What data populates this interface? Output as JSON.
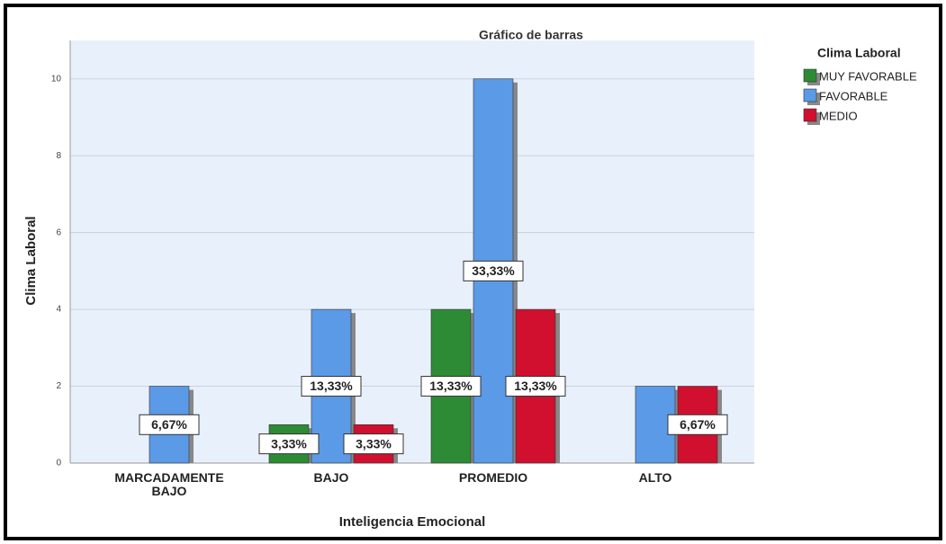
{
  "chart_data": {
    "type": "bar",
    "title": "Gráfico de barras",
    "x_label": "Inteligencia Emocional",
    "y_label": "Clima Laboral",
    "legend_title": "Clima Laboral",
    "legend": "right",
    "categories": [
      "MARCADAMENTE BAJO",
      "BAJO",
      "PROMEDIO",
      "ALTO"
    ],
    "series": [
      {
        "name": "MUY FAVORABLE",
        "color": "#2e8b35",
        "values": [
          null,
          1,
          4,
          null
        ],
        "percent_labels": [
          null,
          "3,33%",
          "13,33%",
          null
        ]
      },
      {
        "name": "FAVORABLE",
        "color": "#5b9ae6",
        "values": [
          2,
          4,
          10,
          2
        ],
        "percent_labels": [
          "6,67%",
          "13,33%",
          "33,33%",
          null
        ]
      },
      {
        "name": "MEDIO",
        "color": "#d0102e",
        "values": [
          null,
          1,
          4,
          2
        ],
        "percent_labels": [
          null,
          "3,33%",
          "13,33%",
          "6,67%"
        ]
      }
    ],
    "ylim": [
      0,
      11
    ],
    "yticks": [
      0,
      2,
      4,
      6,
      8,
      10
    ],
    "grid": true
  }
}
